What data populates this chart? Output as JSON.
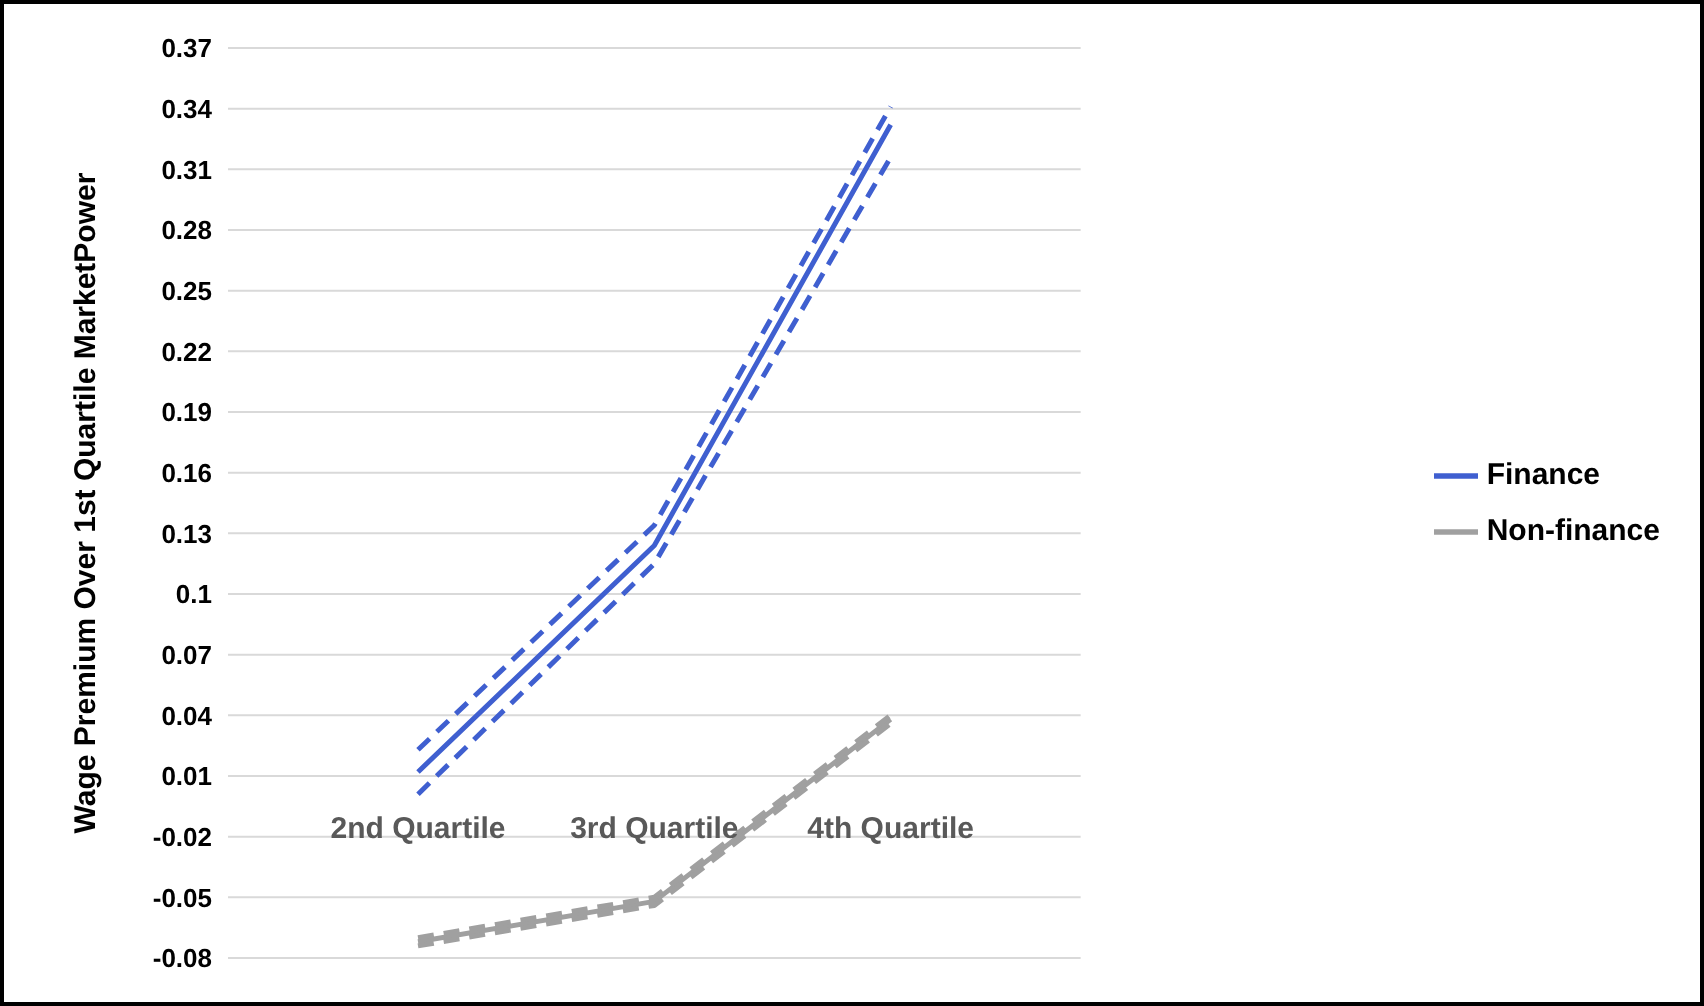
{
  "chart_data": {
    "type": "line",
    "ylabel": "Wage Premium Over 1st Quartile MarketPower",
    "categories": [
      "2nd Quartile",
      "3rd Quartile",
      "4th Quartile"
    ],
    "series": [
      {
        "name": "Finance",
        "color": "#3f5fd0",
        "values": [
          0.012,
          0.124,
          0.332
        ]
      },
      {
        "color": "#3f5fd0",
        "values": [
          0.001,
          0.115,
          0.316
        ],
        "line_style": "dashed"
      },
      {
        "color": "#3f5fd0",
        "values": [
          0.023,
          0.134,
          0.341
        ],
        "line_style": "dashed"
      },
      {
        "name": "Non-finance",
        "color": "#a0a0a0",
        "values": [
          -0.072,
          -0.052,
          0.038
        ]
      },
      {
        "color": "#a0a0a0",
        "values": [
          -0.074,
          -0.054,
          0.036
        ],
        "line_style": "dashed"
      },
      {
        "color": "#a0a0a0",
        "values": [
          -0.07,
          -0.05,
          0.04
        ],
        "line_style": "dashed"
      }
    ],
    "ylim": [
      -0.08,
      0.37
    ],
    "yticks": [
      -0.08,
      -0.05,
      -0.02,
      0.01,
      0.04,
      0.07,
      0.1,
      0.13,
      0.16,
      0.19,
      0.22,
      0.25,
      0.28,
      0.31,
      0.34,
      0.37
    ],
    "grid": "y",
    "legend": "right",
    "marker": "none",
    "line_style": "solid"
  }
}
